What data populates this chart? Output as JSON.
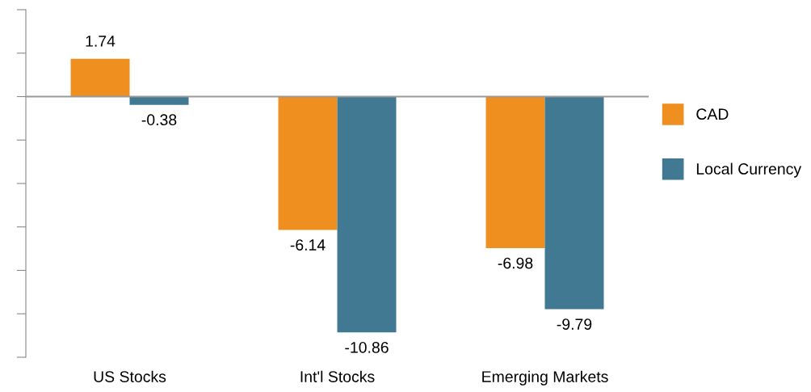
{
  "chart_data": {
    "type": "bar",
    "categories": [
      "US Stocks",
      "Int'l Stocks",
      "Emerging Markets"
    ],
    "series": [
      {
        "name": "CAD",
        "color": "#ee8f1f",
        "values": [
          1.74,
          -6.14,
          -6.98
        ]
      },
      {
        "name": "Local Currency",
        "color": "#417892",
        "values": [
          -0.38,
          -10.86,
          -9.79
        ]
      }
    ],
    "ylim": [
      -12,
      4
    ],
    "yticks": [
      {
        "value": -12,
        "label": null
      },
      {
        "value": -10,
        "label": null
      },
      {
        "value": -8,
        "label": null
      },
      {
        "value": -6,
        "label": null
      },
      {
        "value": -4,
        "label": null
      },
      {
        "value": -2,
        "label": null
      },
      {
        "value": 0,
        "label": null
      },
      {
        "value": 2,
        "label": null
      },
      {
        "value": 4,
        "label": null
      }
    ],
    "tick_labels": "x",
    "data_labels": true,
    "legend": "right",
    "grid": false
  }
}
